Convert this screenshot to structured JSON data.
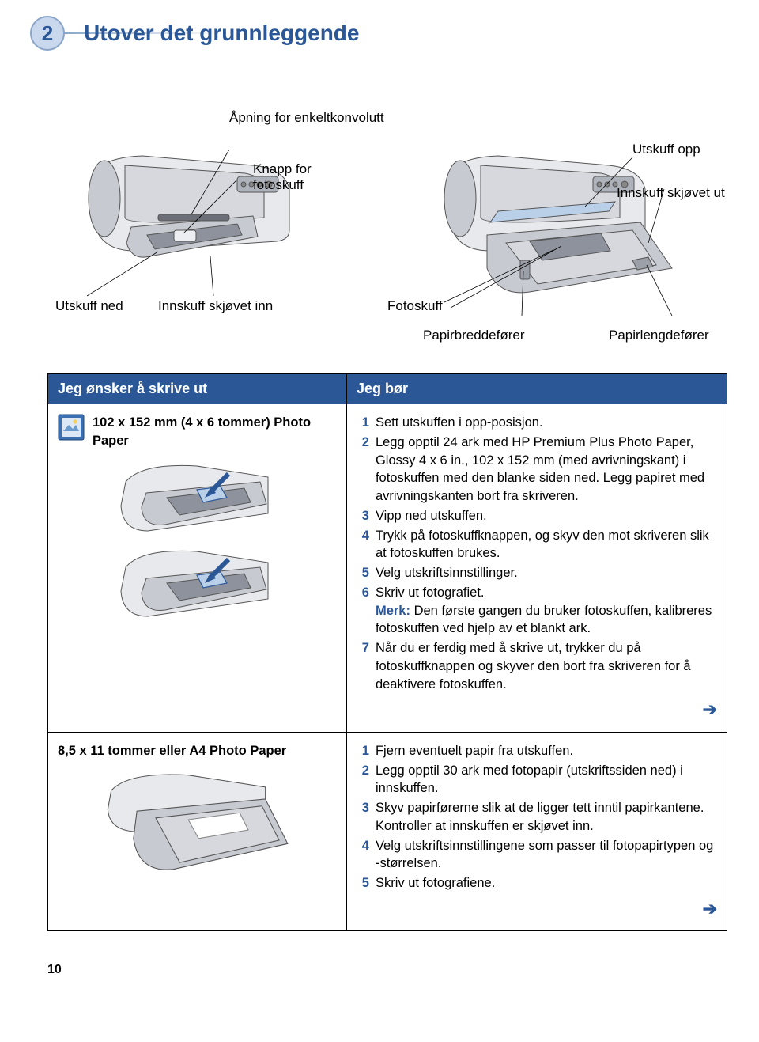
{
  "chapter": {
    "number": "2",
    "title": "Utover det grunnleggende"
  },
  "diagram": {
    "labels": {
      "envelope_slot": "Åpning for enkeltkonvolutt",
      "photo_button": "Knapp for\nfotoskuff",
      "out_down": "Utskuff ned",
      "in_pushed_in": "Innskuff skjøvet inn",
      "out_up": "Utskuff opp",
      "in_pushed_out": "Innskuff skjøvet ut",
      "photo_tray": "Fotoskuff",
      "width_guide": "Papirbreddefører",
      "length_guide": "Papirlengdefører"
    }
  },
  "table": {
    "header_left": "Jeg ønsker å skrive ut",
    "header_right": "Jeg bør",
    "rows": [
      {
        "left_title": "102 x 152 mm (4 x 6 tommer) Photo Paper",
        "has_icon": true,
        "steps": [
          {
            "n": "1",
            "t": "Sett utskuffen i opp-posisjon."
          },
          {
            "n": "2",
            "t": "Legg opptil 24 ark med HP Premium Plus Photo Paper, Glossy 4 x 6 in., 102 x 152 mm (med avrivningskant) i fotoskuffen med den blanke siden ned. Legg papiret med avrivningskanten bort fra skriveren."
          },
          {
            "n": "3",
            "t": "Vipp ned utskuffen."
          },
          {
            "n": "4",
            "t": "Trykk på fotoskuffknappen, og skyv den mot skriveren slik at fotoskuffen brukes."
          },
          {
            "n": "5",
            "t": "Velg utskriftsinnstillinger."
          },
          {
            "n": "6",
            "t": "Skriv ut fotografiet.",
            "note": "Den første gangen du bruker fotoskuffen, kalibreres fotoskuffen ved hjelp av et blankt ark."
          },
          {
            "n": "7",
            "t": "Når du er ferdig med å skrive ut, trykker du på fotoskuffknappen og skyver den bort fra skriveren for å deaktivere fotoskuffen."
          }
        ]
      },
      {
        "left_title": "8,5 x 11 tommer eller A4 Photo Paper",
        "has_icon": false,
        "steps": [
          {
            "n": "1",
            "t": "Fjern eventuelt papir fra utskuffen."
          },
          {
            "n": "2",
            "t": "Legg opptil 30 ark med fotopapir (utskriftssiden ned) i innskuffen."
          },
          {
            "n": "3",
            "t": "Skyv papirførerne slik at de ligger tett inntil papirkantene. Kontroller at innskuffen er skjøvet inn."
          },
          {
            "n": "4",
            "t": "Velg utskriftsinnstillingene som passer til fotopapirtypen og -størrelsen."
          },
          {
            "n": "5",
            "t": "Skriv ut fotografiene."
          }
        ]
      }
    ]
  },
  "note_label": "Merk:",
  "page_number": "10",
  "colors": {
    "brand": "#2b5797",
    "badge_fill": "#c9d8ed",
    "badge_stroke": "#8aa5c9",
    "printer_body_light": "#e8e9ec",
    "printer_body_mid": "#c7cad1",
    "printer_body_dark": "#8d929c",
    "tray_blue": "#b9d0e8"
  }
}
